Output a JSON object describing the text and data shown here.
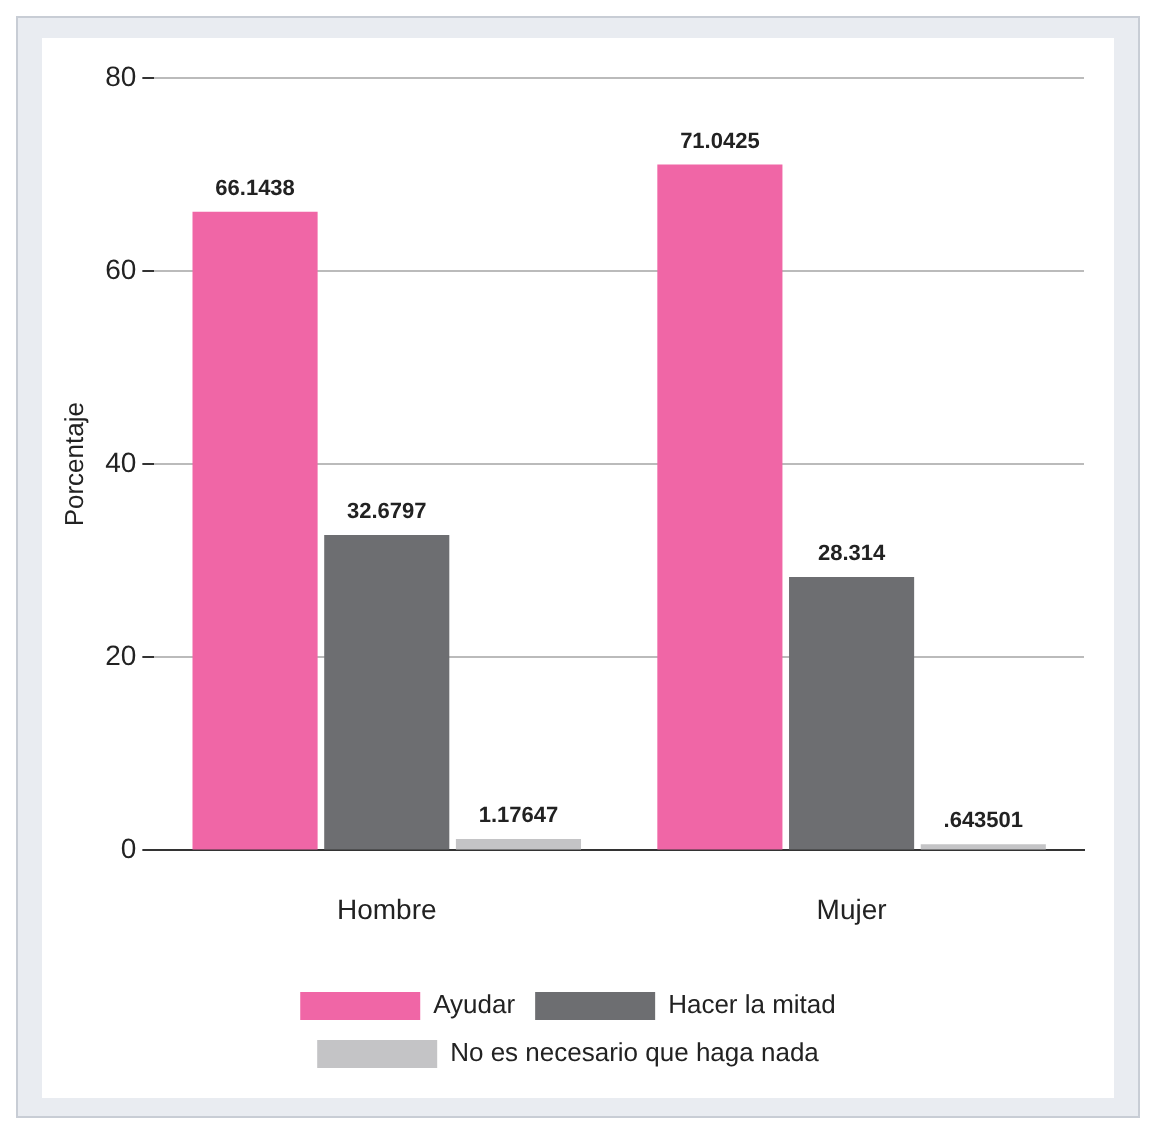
{
  "chart_data": {
    "type": "bar",
    "ylabel": "Porcentaje",
    "categories": [
      "Hombre",
      "Mujer"
    ],
    "series": [
      {
        "name": "Ayudar",
        "color": "#f066a6",
        "values": [
          66.1438,
          71.0425
        ],
        "value_labels": [
          "66.1438",
          "71.0425"
        ]
      },
      {
        "name": "Hacer la mitad",
        "color": "#6d6e71",
        "values": [
          32.6797,
          28.314
        ],
        "value_labels": [
          "32.6797",
          "28.314"
        ]
      },
      {
        "name": "No es necesario que haga nada",
        "color": "#c4c4c6",
        "values": [
          1.17647,
          0.643501
        ],
        "value_labels": [
          "1.17647",
          ".643501"
        ]
      }
    ],
    "ylim": [
      0,
      80
    ],
    "yticks": [
      0,
      20,
      40,
      60,
      80
    ],
    "grid": "y",
    "legend": "bottom"
  }
}
